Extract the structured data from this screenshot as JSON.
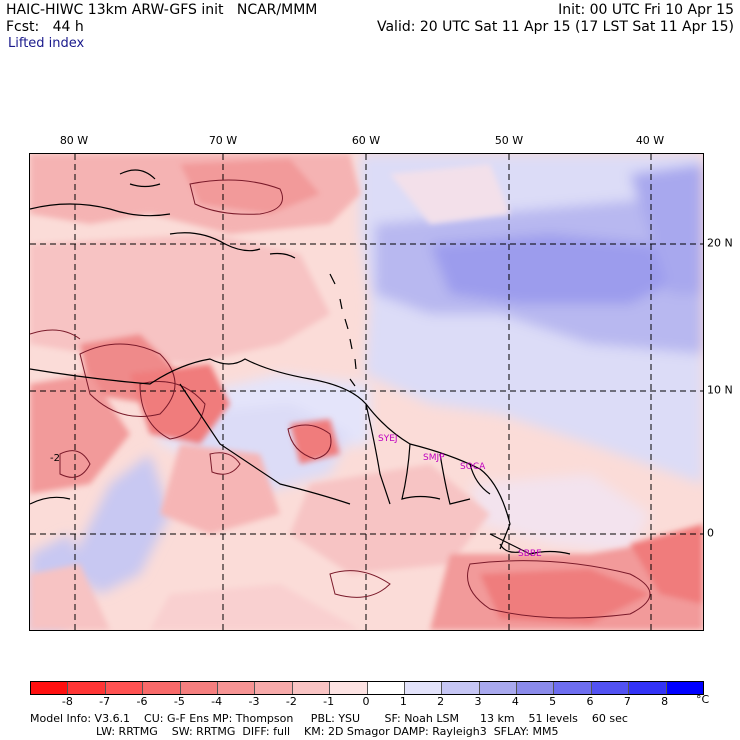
{
  "header": {
    "left_line1": "HAIC-HIWC 13km ARW-GFS init   NCAR/MMM",
    "left_line2": "Fcst:   44 h",
    "field_name": "Lifted index",
    "right_line1": "Init: 00 UTC Fri 10 Apr 15",
    "right_line2": "Valid: 20 UTC Sat 11 Apr 15 (17 LST Sat 11 Apr 15)"
  },
  "map": {
    "longitude_labels": [
      "80 W",
      "70 W",
      "60 W",
      "50 W",
      "40 W"
    ],
    "latitude_labels": [
      "20 N",
      "10 N",
      "0"
    ],
    "contour_label": "-2",
    "station_labels": [
      "SYEJ",
      "SMJP",
      "SOCA",
      "SBBE"
    ]
  },
  "colorbar": {
    "ticks": [
      "-8",
      "-7",
      "-6",
      "-5",
      "-4",
      "-3",
      "-2",
      "-1",
      "0",
      "1",
      "2",
      "3",
      "4",
      "5",
      "6",
      "7",
      "8"
    ],
    "unit": "°C",
    "colors": [
      "#ff1010",
      "#ff3535",
      "#ff5252",
      "#f86a6a",
      "#f57f7f",
      "#f69494",
      "#f7aaaa",
      "#f9c4c4",
      "#fde3e3",
      "#ffffff",
      "#e3e3fb",
      "#c6c6f4",
      "#a9a9ee",
      "#8b8beb",
      "#6e6ef0",
      "#5252f2",
      "#3333f6",
      "#0000ff"
    ]
  },
  "footer": {
    "line1": "Model Info: V3.6.1    CU: G-F Ens MP: Thompson     PBL: YSU       SF: Noah LSM      13 km    51 levels    60 sec",
    "line2": "LW: RRTMG    SW: RRTMG  DIFF: full    KM: 2D Smagor DAMP: Rayleigh3  SFLAY: MM5"
  }
}
